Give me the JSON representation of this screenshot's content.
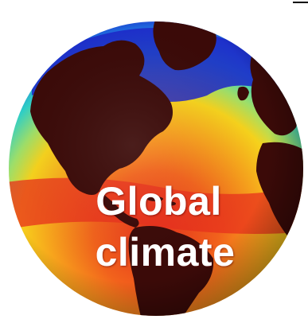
{
  "overlay_text": {
    "line1": "Global",
    "line2": "climate"
  },
  "colors": {
    "background": "#ffffff",
    "land": "#3b0a08",
    "cold_water": "#1d24c8",
    "cool_water": "#2fd0c8",
    "warm_water": "#f7a51c",
    "hot_water": "#e8301c",
    "text": "#ffffff"
  },
  "icons": [
    "globe-sea-surface-temperature"
  ]
}
